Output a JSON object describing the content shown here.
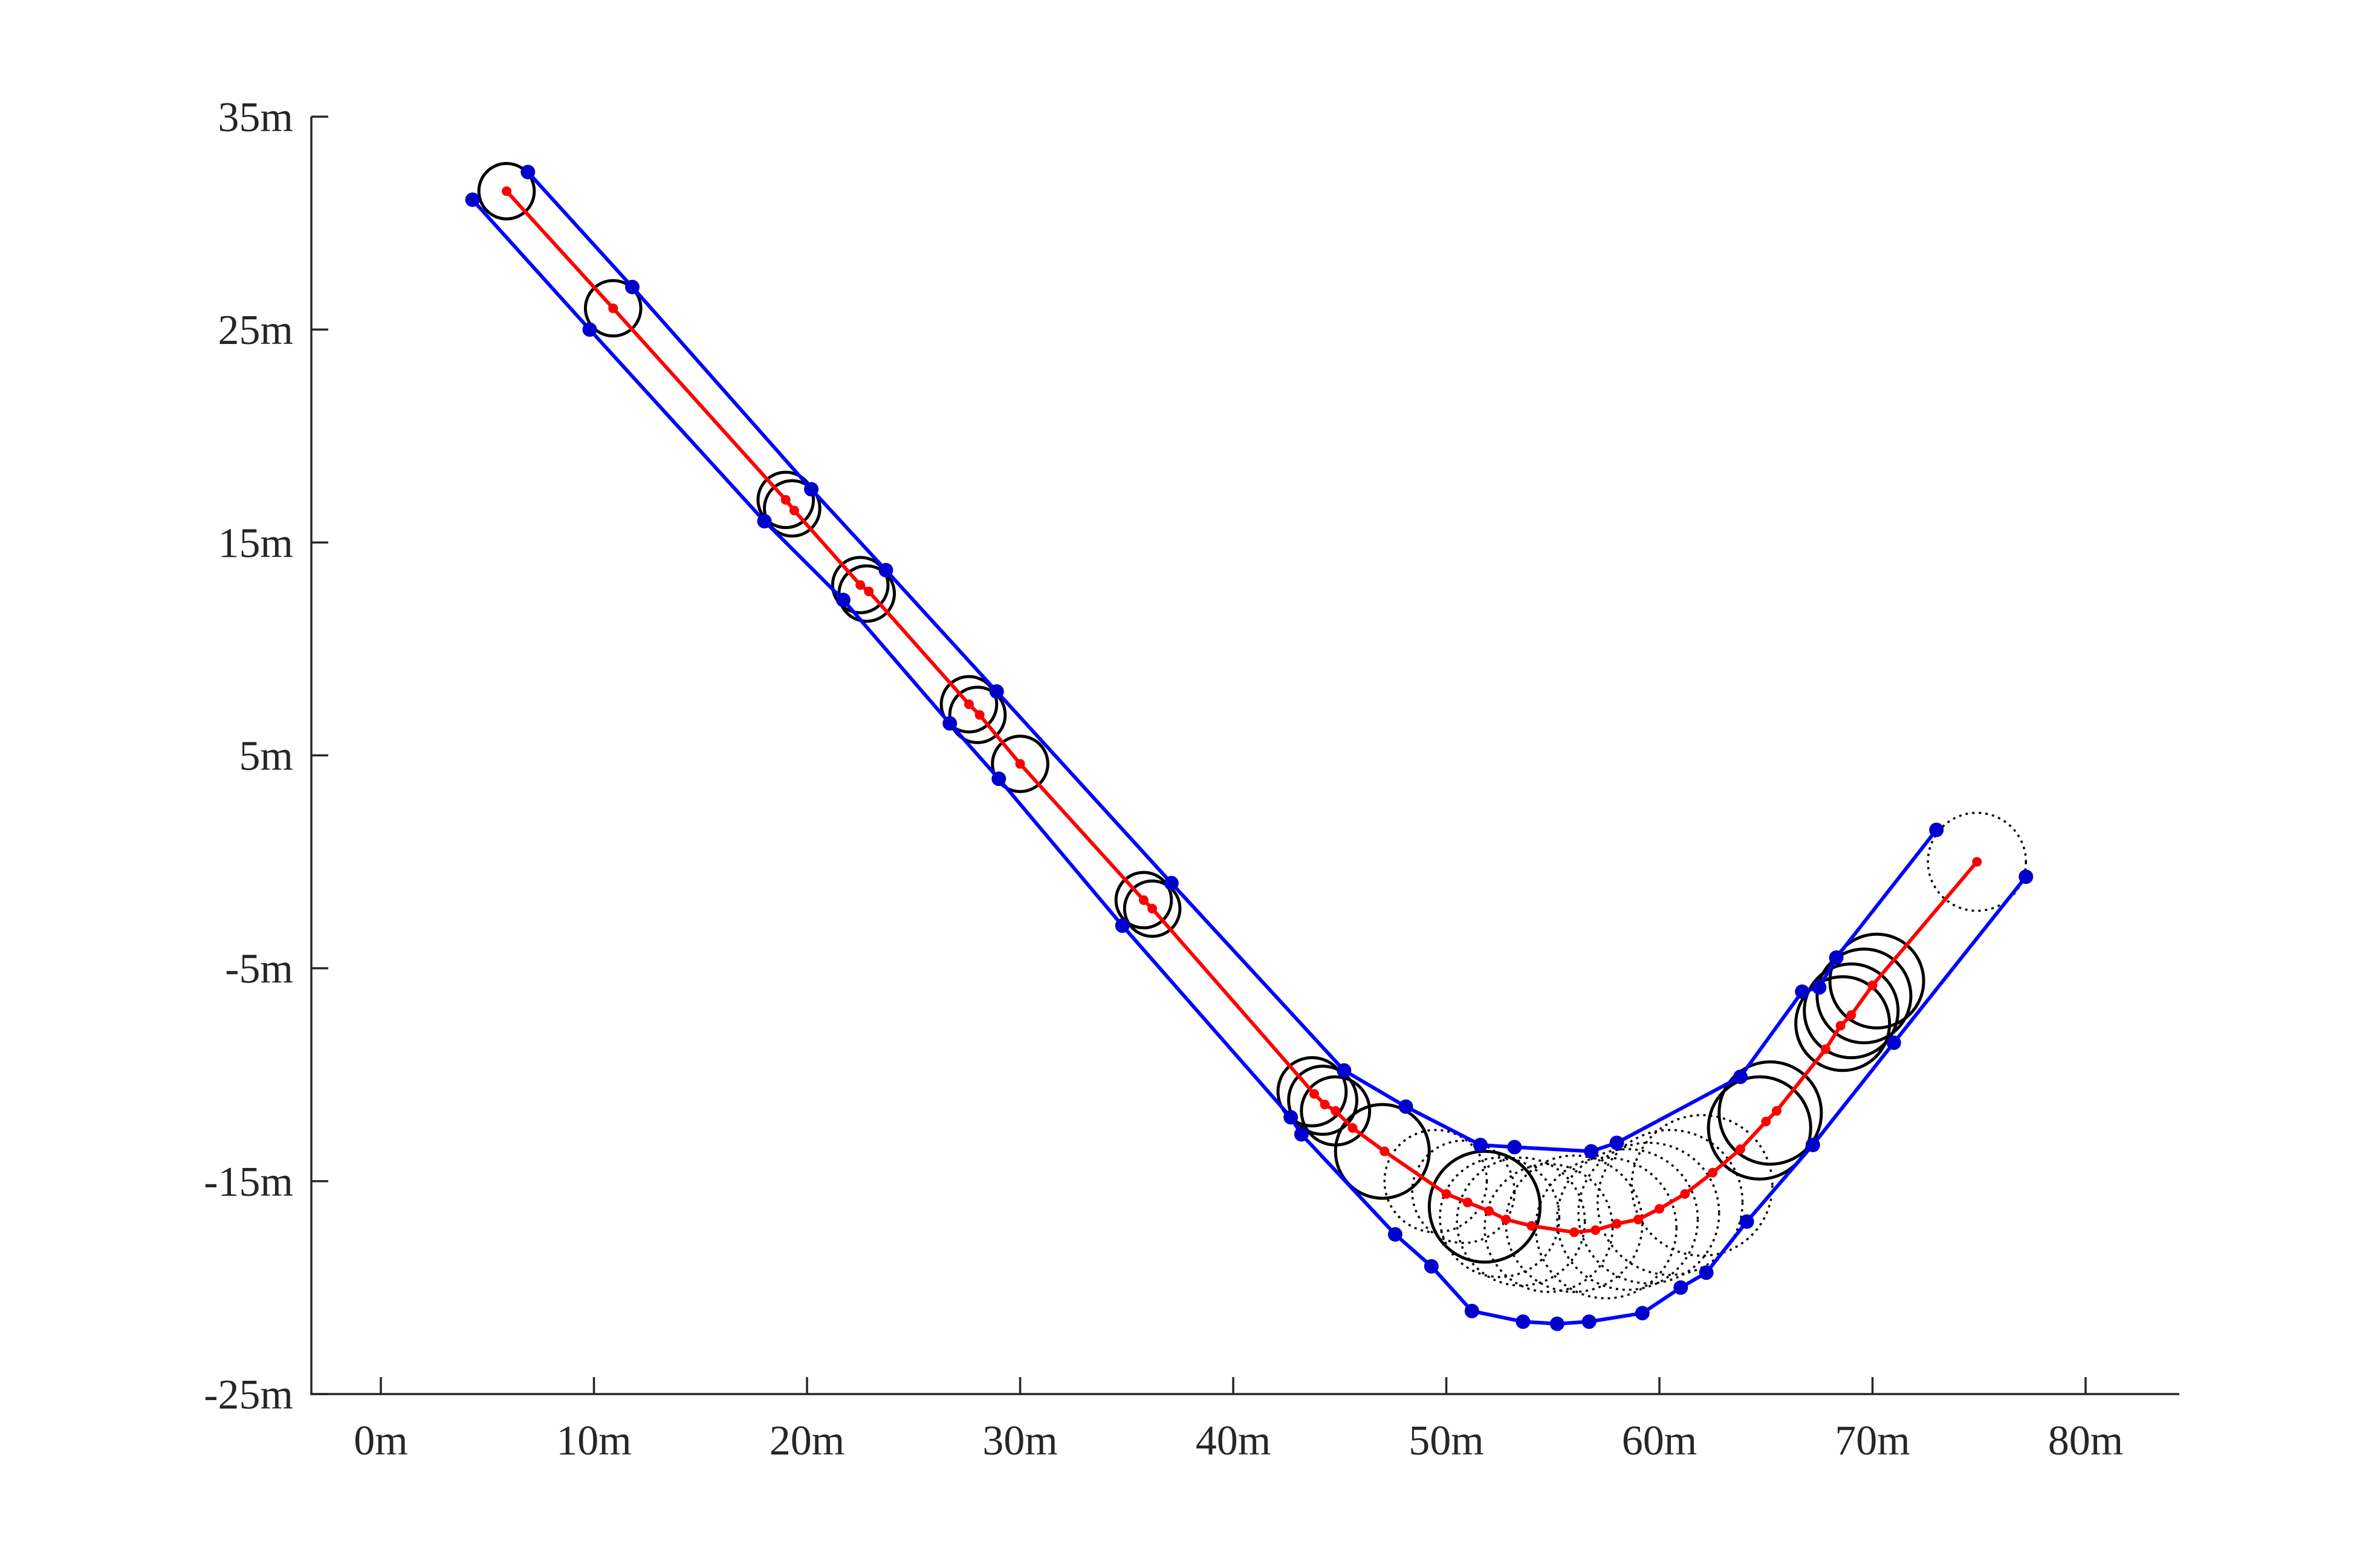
{
  "chart_data": {
    "type": "scatter",
    "title": "",
    "xlabel": "",
    "ylabel": "",
    "xlim": [
      -3,
      85
    ],
    "ylim": [
      -25,
      35
    ],
    "grid": false,
    "x_ticks": [
      0,
      10,
      20,
      30,
      40,
      50,
      60,
      70,
      80
    ],
    "x_tick_labels": [
      "0m",
      "10m",
      "20m",
      "30m",
      "40m",
      "50m",
      "60m",
      "70m",
      "80m"
    ],
    "y_ticks": [
      35,
      25,
      15,
      5,
      -5,
      -15,
      -25
    ],
    "y_tick_labels": [
      "35m",
      "25m",
      "15m",
      "5m",
      "-5m",
      "-15m",
      "-25m"
    ],
    "colors": {
      "path": "#ff0000",
      "boundary": "#0000ff",
      "boundary_points": "#0000cc",
      "circles": "#000000",
      "axes": "#262626"
    },
    "series": [
      {
        "role": "center-path",
        "color": "#ff0000",
        "x": [
          5.9,
          10.9,
          19.0,
          19.4,
          22.5,
          22.9,
          27.6,
          28.1,
          30.0,
          35.8,
          36.2,
          43.8,
          44.3,
          44.8,
          45.6,
          47.1,
          50.0,
          51.0,
          52.0,
          52.8,
          54.0,
          56.0,
          57.0,
          58.0,
          59.0,
          60.0,
          61.2,
          62.5,
          63.8,
          65.0,
          65.5,
          67.8,
          68.5,
          69.0,
          70.0,
          74.9
        ],
        "y": [
          31.5,
          26.0,
          17.0,
          16.5,
          13.0,
          12.7,
          7.4,
          6.9,
          4.6,
          -1.8,
          -2.2,
          -10.9,
          -11.4,
          -11.7,
          -12.5,
          -13.6,
          -15.6,
          -16.0,
          -16.4,
          -16.8,
          -17.1,
          -17.4,
          -17.3,
          -17.0,
          -16.8,
          -16.3,
          -15.6,
          -14.6,
          -13.5,
          -12.2,
          -11.7,
          -8.8,
          -7.7,
          -7.2,
          -5.8,
          0.0
        ]
      },
      {
        "role": "left-boundary",
        "color": "#0000ff",
        "x": [
          6.9,
          11.8,
          20.2,
          23.7,
          28.9,
          37.1,
          45.2,
          48.1,
          51.6,
          53.2,
          56.8,
          58.0,
          63.8,
          66.7,
          67.5,
          68.3,
          73.0
        ],
        "y": [
          32.4,
          27.0,
          17.5,
          13.7,
          8.0,
          -1.0,
          -9.8,
          -11.5,
          -13.3,
          -13.4,
          -13.6,
          -13.2,
          -10.1,
          -6.1,
          -5.9,
          -4.5,
          1.5
        ]
      },
      {
        "role": "right-boundary",
        "color": "#0000ff",
        "x": [
          4.3,
          9.8,
          18.0,
          21.7,
          26.7,
          29.0,
          34.8,
          42.7,
          43.2,
          47.6,
          49.3,
          51.2,
          53.6,
          55.2,
          56.7,
          59.2,
          61.0,
          62.2,
          64.1,
          67.2,
          71.0,
          77.2
        ],
        "y": [
          31.1,
          25.0,
          16.0,
          12.3,
          6.5,
          3.9,
          -3.0,
          -12.0,
          -12.8,
          -17.5,
          -19.0,
          -21.1,
          -21.6,
          -21.7,
          -21.6,
          -21.2,
          -20.0,
          -19.3,
          -16.9,
          -13.3,
          -8.5,
          -0.7
        ]
      }
    ],
    "circles": [
      {
        "x": 5.9,
        "y": 31.5,
        "r": 1.3
      },
      {
        "x": 10.9,
        "y": 26.0,
        "r": 1.3
      },
      {
        "x": 19.0,
        "y": 17.0,
        "r": 1.3
      },
      {
        "x": 19.3,
        "y": 16.6,
        "r": 1.3
      },
      {
        "x": 22.5,
        "y": 13.0,
        "r": 1.3
      },
      {
        "x": 22.8,
        "y": 12.6,
        "r": 1.3
      },
      {
        "x": 27.6,
        "y": 7.4,
        "r": 1.3
      },
      {
        "x": 28.0,
        "y": 6.9,
        "r": 1.3
      },
      {
        "x": 30.0,
        "y": 4.6,
        "r": 1.3
      },
      {
        "x": 35.8,
        "y": -1.8,
        "r": 1.3
      },
      {
        "x": 36.2,
        "y": -2.2,
        "r": 1.3
      },
      {
        "x": 43.7,
        "y": -10.8,
        "r": 1.6
      },
      {
        "x": 44.2,
        "y": -11.2,
        "r": 1.6
      },
      {
        "x": 44.8,
        "y": -11.7,
        "r": 1.6
      },
      {
        "x": 47.0,
        "y": -13.6,
        "r": 2.2
      },
      {
        "x": 49.5,
        "y": -15.0,
        "r": 2.4,
        "dotted": true
      },
      {
        "x": 50.8,
        "y": -15.5,
        "r": 2.4,
        "dotted": true
      },
      {
        "x": 51.8,
        "y": -16.2,
        "r": 2.6
      },
      {
        "x": 52.5,
        "y": -16.7,
        "r": 2.8,
        "dotted": true
      },
      {
        "x": 53.5,
        "y": -16.9,
        "r": 3.0,
        "dotted": true
      },
      {
        "x": 54.8,
        "y": -17.2,
        "r": 3.0,
        "dotted": true
      },
      {
        "x": 56.0,
        "y": -17.0,
        "r": 3.2,
        "dotted": true
      },
      {
        "x": 57.5,
        "y": -17.2,
        "r": 3.3,
        "dotted": true
      },
      {
        "x": 58.5,
        "y": -16.8,
        "r": 3.3,
        "dotted": true
      },
      {
        "x": 59.5,
        "y": -16.5,
        "r": 3.3,
        "dotted": true
      },
      {
        "x": 60.5,
        "y": -16.0,
        "r": 3.4,
        "dotted": true
      },
      {
        "x": 62.0,
        "y": -15.2,
        "r": 3.3,
        "dotted": true
      },
      {
        "x": 64.7,
        "y": -12.5,
        "r": 2.4
      },
      {
        "x": 65.2,
        "y": -11.8,
        "r": 2.4
      },
      {
        "x": 68.6,
        "y": -7.6,
        "r": 2.2
      },
      {
        "x": 69.0,
        "y": -7.0,
        "r": 2.2
      },
      {
        "x": 69.6,
        "y": -6.3,
        "r": 2.2
      },
      {
        "x": 70.2,
        "y": -5.6,
        "r": 2.2
      },
      {
        "x": 74.9,
        "y": 0.0,
        "r": 2.3,
        "dotted": true
      }
    ]
  }
}
